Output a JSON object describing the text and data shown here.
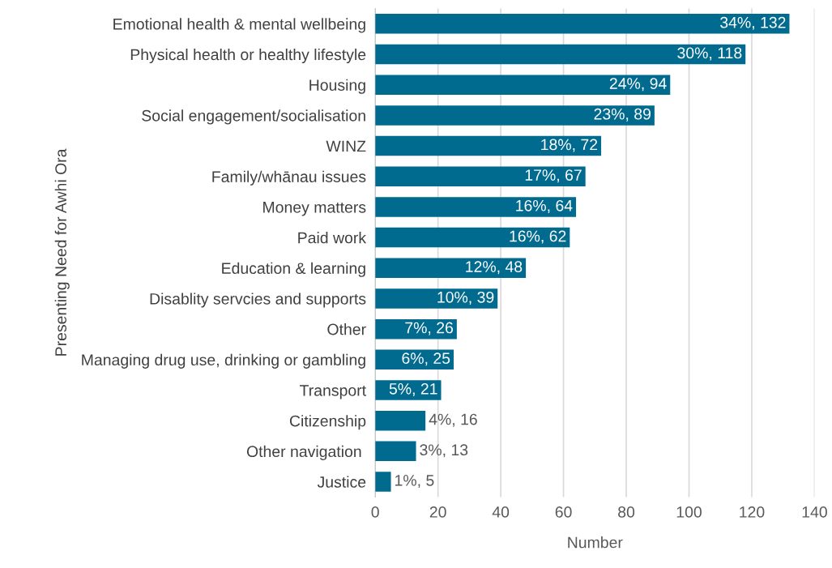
{
  "chart_data": {
    "type": "bar",
    "orientation": "horizontal",
    "categories": [
      "Emotional health & mental wellbeing",
      "Physical health or healthy lifestyle",
      "Housing",
      "Social engagement/socialisation",
      "WINZ",
      "Family/whānau issues",
      "Money matters",
      "Paid work",
      "Education & learning",
      "Disablity servcies and supports",
      "Other",
      "Managing drug use, drinking or gambling",
      "Transport",
      "Citizenship",
      "Other navigation ",
      "Justice"
    ],
    "values": [
      132,
      118,
      94,
      89,
      72,
      67,
      64,
      62,
      48,
      39,
      26,
      25,
      21,
      16,
      13,
      5
    ],
    "value_labels": [
      "34%, 132",
      "30%, 118",
      "24%, 94",
      "23%, 89",
      "18%, 72",
      "17%, 67",
      "16%, 64",
      "16%, 62",
      "12%, 48",
      "10%, 39",
      "7%, 26",
      "6%, 25",
      "5%, 21",
      "4%, 16",
      "3%, 13",
      "1%, 5"
    ],
    "color": "#006a8f",
    "xlabel": "Number",
    "ylabel": "Presenting Need for Awhi Ora",
    "xlim": [
      0,
      140
    ],
    "xticks": [
      0,
      20,
      40,
      60,
      80,
      100,
      120,
      140
    ],
    "grid": "x",
    "legend": false
  }
}
